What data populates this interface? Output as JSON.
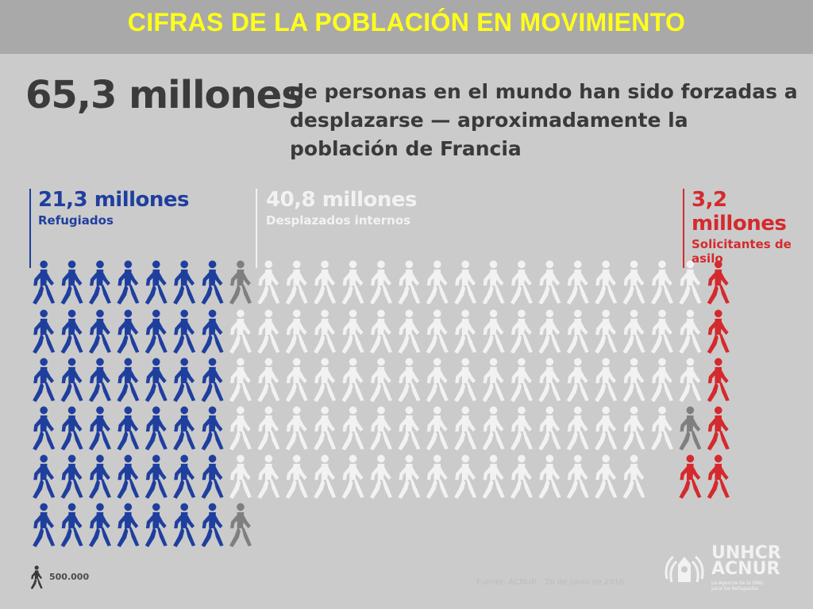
{
  "header": {
    "title": "CIFRAS DE LA POBLACIÓN EN MOVIMIENTO"
  },
  "headline": {
    "total": "65,3 millones",
    "description": "de personas en el mundo han sido forzadas a desplazarse — aproximadamente la población de Francia"
  },
  "categories": [
    {
      "value": "21,3 millones",
      "label": "Refugiados",
      "color": "#1f3f9e"
    },
    {
      "value": "40,8 millones",
      "label": "Desplazados internos",
      "color": "#f2f2f2"
    },
    {
      "value": "3,2 millones",
      "label": "Solicitantes de asilo",
      "color": "#d42a2e"
    }
  ],
  "legend": {
    "unit_value": "500.000"
  },
  "footer": {
    "source": "Fuente: ACNUR - 20 de junio de 2016",
    "logo_text_1": "UNHCR",
    "logo_text_2": "ACNUR",
    "logo_subtitle": "La Agencia de la ONU para los Refugiados"
  },
  "chart_data": {
    "type": "pictograph",
    "unit": 500000,
    "unit_label": "500.000",
    "series": [
      {
        "name": "Refugiados",
        "value_millions": 21.3,
        "icons": 42.6,
        "color": "#1f3f9e"
      },
      {
        "name": "Desplazados internos",
        "value_millions": 40.8,
        "icons": 81.6,
        "color": "#f2f2f2"
      },
      {
        "name": "Solicitantes de asilo",
        "value_millions": 3.2,
        "icons": 6.4,
        "color": "#d42a2e"
      }
    ],
    "colors": {
      "partial_rest": "#7f7f7f"
    }
  }
}
